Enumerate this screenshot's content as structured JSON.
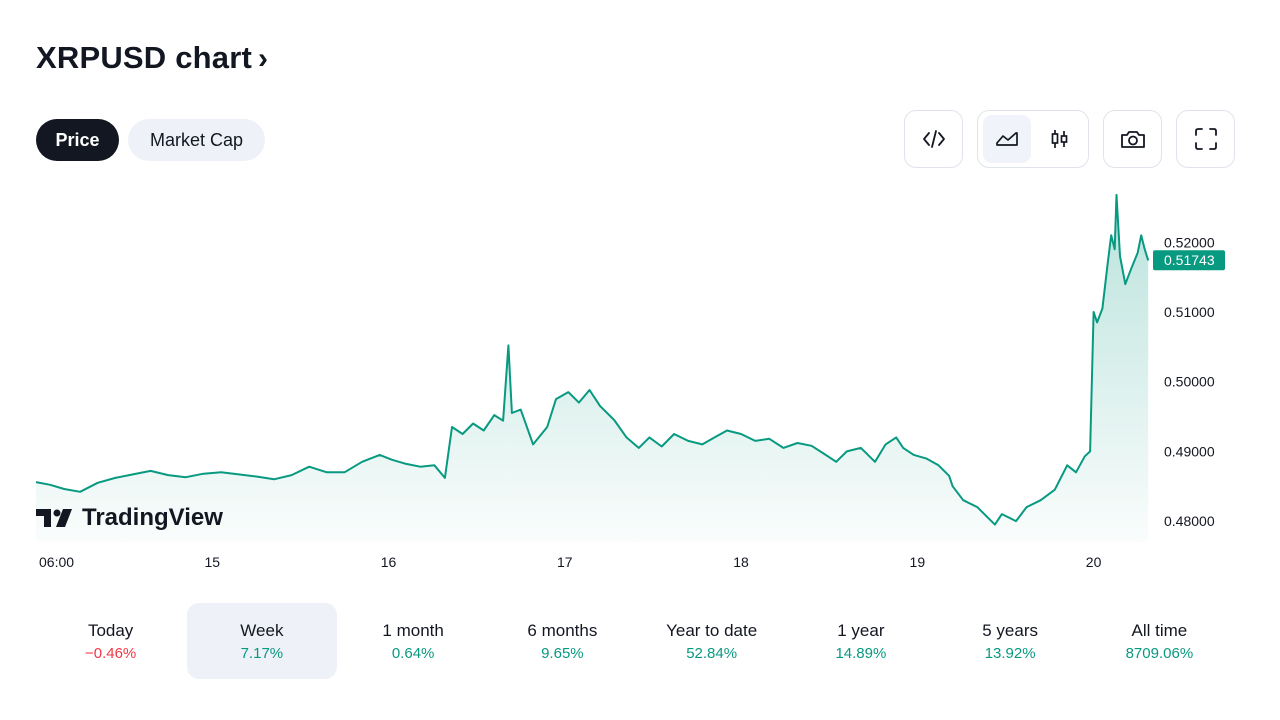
{
  "header": {
    "title": "XRPUSD chart",
    "chevron": "›"
  },
  "tabs": [
    {
      "label": "Price",
      "active": true
    },
    {
      "label": "Market Cap",
      "active": false
    }
  ],
  "toolbar": {
    "embed_icon": "code-icon",
    "area_icon": "area-chart-icon",
    "candle_icon": "candlestick-icon",
    "snapshot_icon": "camera-icon",
    "fullscreen_icon": "fullscreen-icon",
    "active_chart_type": "area"
  },
  "logo": {
    "text": "TradingView"
  },
  "colors": {
    "accent": "#089981",
    "negative": "#f23645",
    "text": "#131722"
  },
  "chart_data": {
    "type": "area",
    "symbol": "XRPUSD",
    "current_price_label": "0.51743",
    "current_price": 0.51743,
    "ylim": [
      0.477,
      0.5275
    ],
    "y_ticks": [
      "0.52000",
      "0.51000",
      "0.50000",
      "0.49000",
      "0.48000"
    ],
    "x_ticks": [
      "06:00",
      "15",
      "16",
      "17",
      "18",
      "19",
      "20"
    ],
    "x_tick_days": [
      14.25,
      15.0,
      16.0,
      17.0,
      18.0,
      19.0,
      20.0
    ],
    "xlim": [
      14.0,
      20.32
    ],
    "grid": false,
    "series": [
      {
        "points": [
          [
            14.0,
            0.4856
          ],
          [
            14.08,
            0.4852
          ],
          [
            14.16,
            0.4846
          ],
          [
            14.25,
            0.4842
          ],
          [
            14.35,
            0.4855
          ],
          [
            14.45,
            0.4862
          ],
          [
            14.55,
            0.4867
          ],
          [
            14.65,
            0.4872
          ],
          [
            14.75,
            0.4866
          ],
          [
            14.85,
            0.4863
          ],
          [
            14.95,
            0.4868
          ],
          [
            15.05,
            0.487
          ],
          [
            15.15,
            0.4867
          ],
          [
            15.25,
            0.4864
          ],
          [
            15.35,
            0.486
          ],
          [
            15.45,
            0.4866
          ],
          [
            15.55,
            0.4878
          ],
          [
            15.65,
            0.487
          ],
          [
            15.75,
            0.487
          ],
          [
            15.85,
            0.4885
          ],
          [
            15.95,
            0.4895
          ],
          [
            16.02,
            0.4888
          ],
          [
            16.1,
            0.4882
          ],
          [
            16.18,
            0.4878
          ],
          [
            16.26,
            0.488
          ],
          [
            16.32,
            0.4862
          ],
          [
            16.36,
            0.4935
          ],
          [
            16.42,
            0.4925
          ],
          [
            16.48,
            0.494
          ],
          [
            16.54,
            0.493
          ],
          [
            16.6,
            0.4952
          ],
          [
            16.65,
            0.4944
          ],
          [
            16.68,
            0.5052
          ],
          [
            16.7,
            0.4955
          ],
          [
            16.75,
            0.496
          ],
          [
            16.82,
            0.491
          ],
          [
            16.9,
            0.4935
          ],
          [
            16.95,
            0.4975
          ],
          [
            17.02,
            0.4985
          ],
          [
            17.08,
            0.497
          ],
          [
            17.14,
            0.4988
          ],
          [
            17.2,
            0.4965
          ],
          [
            17.28,
            0.4945
          ],
          [
            17.35,
            0.492
          ],
          [
            17.42,
            0.4905
          ],
          [
            17.48,
            0.492
          ],
          [
            17.55,
            0.4907
          ],
          [
            17.62,
            0.4925
          ],
          [
            17.7,
            0.4915
          ],
          [
            17.78,
            0.491
          ],
          [
            17.85,
            0.492
          ],
          [
            17.92,
            0.493
          ],
          [
            18.0,
            0.4925
          ],
          [
            18.08,
            0.4915
          ],
          [
            18.16,
            0.4918
          ],
          [
            18.24,
            0.4905
          ],
          [
            18.32,
            0.4912
          ],
          [
            18.4,
            0.4908
          ],
          [
            18.48,
            0.4895
          ],
          [
            18.54,
            0.4885
          ],
          [
            18.6,
            0.49
          ],
          [
            18.68,
            0.4905
          ],
          [
            18.76,
            0.4885
          ],
          [
            18.82,
            0.491
          ],
          [
            18.88,
            0.492
          ],
          [
            18.92,
            0.4905
          ],
          [
            18.98,
            0.4895
          ],
          [
            19.05,
            0.489
          ],
          [
            19.12,
            0.488
          ],
          [
            19.18,
            0.4865
          ],
          [
            19.2,
            0.485
          ],
          [
            19.26,
            0.483
          ],
          [
            19.34,
            0.482
          ],
          [
            19.4,
            0.4805
          ],
          [
            19.44,
            0.4795
          ],
          [
            19.48,
            0.481
          ],
          [
            19.56,
            0.48
          ],
          [
            19.62,
            0.482
          ],
          [
            19.7,
            0.483
          ],
          [
            19.78,
            0.4845
          ],
          [
            19.85,
            0.488
          ],
          [
            19.9,
            0.487
          ],
          [
            19.95,
            0.4893
          ],
          [
            19.98,
            0.49
          ],
          [
            20.0,
            0.51
          ],
          [
            20.02,
            0.5085
          ],
          [
            20.05,
            0.5105
          ],
          [
            20.08,
            0.517
          ],
          [
            20.1,
            0.521
          ],
          [
            20.12,
            0.519
          ],
          [
            20.13,
            0.5268
          ],
          [
            20.15,
            0.518
          ],
          [
            20.18,
            0.514
          ],
          [
            20.21,
            0.516
          ],
          [
            20.25,
            0.5185
          ],
          [
            20.27,
            0.521
          ],
          [
            20.29,
            0.519
          ],
          [
            20.31,
            0.5174
          ]
        ]
      }
    ]
  },
  "periods": [
    {
      "label": "Today",
      "value": "−0.46%",
      "dir": "neg",
      "active": false
    },
    {
      "label": "Week",
      "value": "7.17%",
      "dir": "pos",
      "active": true
    },
    {
      "label": "1 month",
      "value": "0.64%",
      "dir": "pos",
      "active": false
    },
    {
      "label": "6 months",
      "value": "9.65%",
      "dir": "pos",
      "active": false
    },
    {
      "label": "Year to date",
      "value": "52.84%",
      "dir": "pos",
      "active": false
    },
    {
      "label": "1 year",
      "value": "14.89%",
      "dir": "pos",
      "active": false
    },
    {
      "label": "5 years",
      "value": "13.92%",
      "dir": "pos",
      "active": false
    },
    {
      "label": "All time",
      "value": "8709.06%",
      "dir": "pos",
      "active": false
    }
  ]
}
